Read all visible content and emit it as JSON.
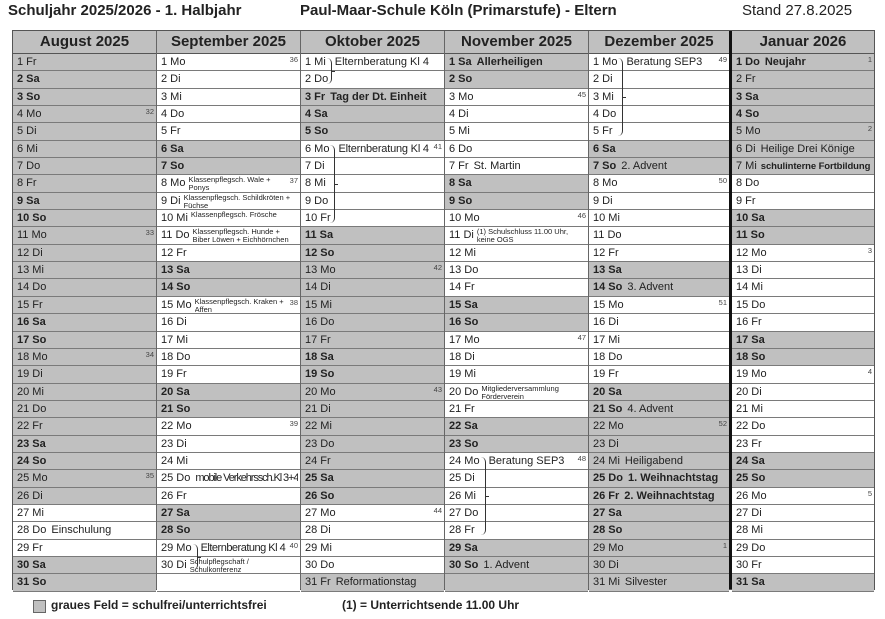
{
  "header": {
    "left": "Schuljahr 2025/2026 - 1. Halbjahr",
    "center": "Paul-Maar-Schule Köln (Primarstufe) - Eltern",
    "right": "Stand 27.8.2025"
  },
  "legend": {
    "gray": "graues Feld = schulfrei/unterrichtsfrei",
    "footnote": "(1) = Unterrichtsende 11.00 Uhr"
  },
  "colors": {
    "gray": "#c0c0c0",
    "white": "#ffffff"
  },
  "months": [
    {
      "name": "August 2025",
      "days": [
        {
          "t": "1 Fr",
          "g": 1
        },
        {
          "t": "2 Sa",
          "g": 1,
          "b": 1
        },
        {
          "t": "3 So",
          "g": 1,
          "b": 1
        },
        {
          "t": "4 Mo",
          "g": 1,
          "kw": "32"
        },
        {
          "t": "5 Di",
          "g": 1
        },
        {
          "t": "6 Mi",
          "g": 1
        },
        {
          "t": "7 Do",
          "g": 1
        },
        {
          "t": "8 Fr",
          "g": 1
        },
        {
          "t": "9 Sa",
          "g": 1,
          "b": 1
        },
        {
          "t": "10 So",
          "g": 1,
          "b": 1
        },
        {
          "t": "11 Mo",
          "g": 1,
          "kw": "33"
        },
        {
          "t": "12 Di",
          "g": 1
        },
        {
          "t": "13 Mi",
          "g": 1
        },
        {
          "t": "14 Do",
          "g": 1
        },
        {
          "t": "15 Fr",
          "g": 1
        },
        {
          "t": "16 Sa",
          "g": 1,
          "b": 1
        },
        {
          "t": "17 So",
          "g": 1,
          "b": 1
        },
        {
          "t": "18 Mo",
          "g": 1,
          "kw": "34"
        },
        {
          "t": "19 Di",
          "g": 1
        },
        {
          "t": "20 Mi",
          "g": 1
        },
        {
          "t": "21 Do",
          "g": 1
        },
        {
          "t": "22 Fr",
          "g": 1
        },
        {
          "t": "23 Sa",
          "g": 1,
          "b": 1
        },
        {
          "t": "24 So",
          "g": 1,
          "b": 1
        },
        {
          "t": "25 Mo",
          "g": 1,
          "kw": "35"
        },
        {
          "t": "26 Di",
          "g": 1
        },
        {
          "t": "27 Mi"
        },
        {
          "t": "28 Do",
          "n": "Einschulung"
        },
        {
          "t": "29 Fr"
        },
        {
          "t": "30 Sa",
          "g": 1,
          "b": 1
        },
        {
          "t": "31 So",
          "g": 1,
          "b": 1
        }
      ]
    },
    {
      "name": "September 2025",
      "days": [
        {
          "t": "1 Mo",
          "kw": "36"
        },
        {
          "t": "2 Di"
        },
        {
          "t": "3 Mi"
        },
        {
          "t": "4 Do"
        },
        {
          "t": "5 Fr"
        },
        {
          "t": "6 Sa",
          "g": 1,
          "b": 1
        },
        {
          "t": "7 So",
          "g": 1,
          "b": 1
        },
        {
          "t": "8 Mo",
          "n": "Klassenpflegsch. Wale + Ponys",
          "s": 1,
          "kw": "37"
        },
        {
          "t": "9 Di",
          "n": "Klassenpflegsch. Schildkröten + Füchse",
          "s": 1
        },
        {
          "t": "10 Mi",
          "n": "Klassenpflegsch. Frösche",
          "s": 1
        },
        {
          "t": "11 Do",
          "n": "Klassenpflegsch. Hunde + Biber Löwen + Eichhörnchen",
          "s": 1
        },
        {
          "t": "12 Fr"
        },
        {
          "t": "13 Sa",
          "g": 1,
          "b": 1
        },
        {
          "t": "14 So",
          "g": 1,
          "b": 1
        },
        {
          "t": "15 Mo",
          "n": "Klassenpflegsch. Kraken + Affen",
          "s": 1,
          "kw": "38"
        },
        {
          "t": "16 Di"
        },
        {
          "t": "17 Mi"
        },
        {
          "t": "18 Do"
        },
        {
          "t": "19 Fr"
        },
        {
          "t": "20 Sa",
          "g": 1,
          "b": 1
        },
        {
          "t": "21 So",
          "g": 1,
          "b": 1
        },
        {
          "t": "22 Mo",
          "kw": "39"
        },
        {
          "t": "23 Di"
        },
        {
          "t": "24 Mi"
        },
        {
          "t": "25 Do",
          "n": "mobile Verkehrssch.Kl 3+4"
        },
        {
          "t": "26 Fr"
        },
        {
          "t": "27 Sa",
          "g": 1,
          "b": 1
        },
        {
          "t": "28 So",
          "g": 1,
          "b": 1
        },
        {
          "t": "29 Mo",
          "n": "Elternberatung Kl 4",
          "br": 1,
          "kw": "40"
        },
        {
          "t": "30 Di",
          "n": "Schulpflegschaft / Schulkonferenz",
          "s": 1
        },
        {
          "t": ""
        }
      ]
    },
    {
      "name": "Oktober 2025",
      "days": [
        {
          "t": "1 Mi",
          "n": "Elternberatung Kl 4",
          "br": 1
        },
        {
          "t": "2 Do"
        },
        {
          "t": "3 Fr",
          "n": "Tag der Dt. Einheit",
          "g": 1,
          "b": 1,
          "nb": 1
        },
        {
          "t": "4 Sa",
          "g": 1,
          "b": 1
        },
        {
          "t": "5 So",
          "g": 1,
          "b": 1
        },
        {
          "t": "6 Mo",
          "n": "Elternberatung Kl 4",
          "br": 1,
          "kw": "41"
        },
        {
          "t": "7 Di"
        },
        {
          "t": "8 Mi"
        },
        {
          "t": "9 Do"
        },
        {
          "t": "10 Fr"
        },
        {
          "t": "11 Sa",
          "g": 1,
          "b": 1
        },
        {
          "t": "12 So",
          "g": 1,
          "b": 1
        },
        {
          "t": "13 Mo",
          "g": 1,
          "kw": "42"
        },
        {
          "t": "14 Di",
          "g": 1
        },
        {
          "t": "15 Mi",
          "g": 1
        },
        {
          "t": "16 Do",
          "g": 1
        },
        {
          "t": "17 Fr",
          "g": 1
        },
        {
          "t": "18 Sa",
          "g": 1,
          "b": 1
        },
        {
          "t": "19 So",
          "g": 1,
          "b": 1
        },
        {
          "t": "20 Mo",
          "g": 1,
          "kw": "43"
        },
        {
          "t": "21 Di",
          "g": 1
        },
        {
          "t": "22 Mi",
          "g": 1
        },
        {
          "t": "23 Do",
          "g": 1
        },
        {
          "t": "24 Fr",
          "g": 1
        },
        {
          "t": "25 Sa",
          "g": 1,
          "b": 1
        },
        {
          "t": "26 So",
          "g": 1,
          "b": 1
        },
        {
          "t": "27 Mo",
          "kw": "44"
        },
        {
          "t": "28 Di"
        },
        {
          "t": "29 Mi"
        },
        {
          "t": "30 Do"
        },
        {
          "t": "31 Fr",
          "n": "Reformationstag",
          "g": 1
        }
      ]
    },
    {
      "name": "November 2025",
      "days": [
        {
          "t": "1 Sa",
          "n": "Allerheiligen",
          "g": 1,
          "b": 1,
          "nb": 1
        },
        {
          "t": "2 So",
          "g": 1,
          "b": 1
        },
        {
          "t": "3 Mo",
          "kw": "45"
        },
        {
          "t": "4 Di"
        },
        {
          "t": "5 Mi"
        },
        {
          "t": "6 Do"
        },
        {
          "t": "7 Fr",
          "n": "St. Martin"
        },
        {
          "t": "8 Sa",
          "g": 1,
          "b": 1
        },
        {
          "t": "9 So",
          "g": 1,
          "b": 1
        },
        {
          "t": "10 Mo",
          "kw": "46"
        },
        {
          "t": "11 Di",
          "n": "(1) Schulschluss 11.00 Uhr, keine OGS",
          "s": 1
        },
        {
          "t": "12 Mi"
        },
        {
          "t": "13 Do"
        },
        {
          "t": "14 Fr"
        },
        {
          "t": "15 Sa",
          "g": 1,
          "b": 1
        },
        {
          "t": "16 So",
          "g": 1,
          "b": 1
        },
        {
          "t": "17 Mo",
          "kw": "47"
        },
        {
          "t": "18 Di"
        },
        {
          "t": "19 Mi"
        },
        {
          "t": "20 Do",
          "n": "Mitgliederversammlung Förderverein",
          "s": 1
        },
        {
          "t": "21 Fr"
        },
        {
          "t": "22 Sa",
          "g": 1,
          "b": 1
        },
        {
          "t": "23 So",
          "g": 1,
          "b": 1
        },
        {
          "t": "24 Mo",
          "n": "Beratung SEP3",
          "br": 1,
          "kw": "48"
        },
        {
          "t": "25 Di"
        },
        {
          "t": "26 Mi"
        },
        {
          "t": "27 Do"
        },
        {
          "t": "28 Fr"
        },
        {
          "t": "29 Sa",
          "g": 1,
          "b": 1
        },
        {
          "t": "30 So",
          "n": "1. Advent",
          "g": 1,
          "b": 1
        },
        {
          "t": "",
          "g": 1
        }
      ]
    },
    {
      "name": "Dezember 2025",
      "days": [
        {
          "t": "1 Mo",
          "n": "Beratung SEP3",
          "br": 1,
          "kw": "49"
        },
        {
          "t": "2 Di"
        },
        {
          "t": "3 Mi"
        },
        {
          "t": "4 Do"
        },
        {
          "t": "5 Fr"
        },
        {
          "t": "6 Sa",
          "g": 1,
          "b": 1
        },
        {
          "t": "7 So",
          "n": "2. Advent",
          "g": 1,
          "b": 1
        },
        {
          "t": "8 Mo",
          "kw": "50"
        },
        {
          "t": "9 Di"
        },
        {
          "t": "10 Mi"
        },
        {
          "t": "11 Do"
        },
        {
          "t": "12 Fr"
        },
        {
          "t": "13 Sa",
          "g": 1,
          "b": 1
        },
        {
          "t": "14 So",
          "n": "3. Advent",
          "g": 1,
          "b": 1
        },
        {
          "t": "15 Mo",
          "kw": "51"
        },
        {
          "t": "16 Di"
        },
        {
          "t": "17 Mi"
        },
        {
          "t": "18 Do"
        },
        {
          "t": "19 Fr"
        },
        {
          "t": "20 Sa",
          "g": 1,
          "b": 1
        },
        {
          "t": "21 So",
          "n": "4. Advent",
          "g": 1,
          "b": 1
        },
        {
          "t": "22 Mo",
          "g": 1,
          "kw": "52"
        },
        {
          "t": "23 Di",
          "g": 1
        },
        {
          "t": "24 Mi",
          "n": "Heiligabend",
          "g": 1
        },
        {
          "t": "25 Do",
          "n": "1. Weihnachtstag",
          "g": 1,
          "b": 1,
          "nb": 1
        },
        {
          "t": "26 Fr",
          "n": "2. Weihnachtstag",
          "g": 1,
          "b": 1,
          "nb": 1
        },
        {
          "t": "27 Sa",
          "g": 1,
          "b": 1
        },
        {
          "t": "28 So",
          "g": 1,
          "b": 1
        },
        {
          "t": "29 Mo",
          "g": 1,
          "kw": "1"
        },
        {
          "t": "30 Di",
          "g": 1
        },
        {
          "t": "31 Mi",
          "n": "Silvester",
          "g": 1
        }
      ]
    },
    {
      "name": "Januar 2026",
      "days": [
        {
          "t": "1 Do",
          "n": "Neujahr",
          "g": 1,
          "b": 1,
          "nb": 1,
          "kw": "1"
        },
        {
          "t": "2 Fr",
          "g": 1
        },
        {
          "t": "3 Sa",
          "g": 1,
          "b": 1
        },
        {
          "t": "4 So",
          "g": 1,
          "b": 1
        },
        {
          "t": "5 Mo",
          "g": 1,
          "kw": "2"
        },
        {
          "t": "6 Di",
          "n": "Heilige Drei Könige",
          "g": 1
        },
        {
          "t": "7 Mi",
          "n": "schulinterne Fortbildung",
          "g": 1,
          "sb": 1
        },
        {
          "t": "8 Do"
        },
        {
          "t": "9 Fr"
        },
        {
          "t": "10 Sa",
          "g": 1,
          "b": 1
        },
        {
          "t": "11 So",
          "g": 1,
          "b": 1
        },
        {
          "t": "12 Mo",
          "kw": "3"
        },
        {
          "t": "13 Di"
        },
        {
          "t": "14 Mi"
        },
        {
          "t": "15 Do"
        },
        {
          "t": "16 Fr"
        },
        {
          "t": "17 Sa",
          "g": 1,
          "b": 1
        },
        {
          "t": "18 So",
          "g": 1,
          "b": 1
        },
        {
          "t": "19 Mo",
          "kw": "4"
        },
        {
          "t": "20 Di"
        },
        {
          "t": "21 Mi"
        },
        {
          "t": "22 Do"
        },
        {
          "t": "23 Fr"
        },
        {
          "t": "24 Sa",
          "g": 1,
          "b": 1
        },
        {
          "t": "25 So",
          "g": 1,
          "b": 1
        },
        {
          "t": "26 Mo",
          "kw": "5"
        },
        {
          "t": "27 Di"
        },
        {
          "t": "28 Mi"
        },
        {
          "t": "29 Do"
        },
        {
          "t": "30 Fr"
        },
        {
          "t": "31 Sa",
          "g": 1,
          "b": 1
        }
      ]
    }
  ]
}
